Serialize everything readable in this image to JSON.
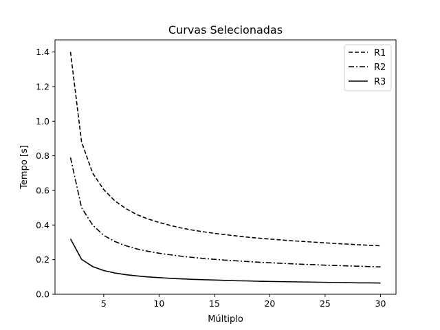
{
  "chart_data": {
    "type": "line",
    "title": "Curvas Selecionadas",
    "xlabel": "Múltiplo",
    "ylabel": "Tempo [s]",
    "xlim": [
      0.6,
      31.4
    ],
    "ylim": [
      0.0,
      1.47
    ],
    "xticks": [
      5,
      10,
      15,
      20,
      25,
      30
    ],
    "xtick_labels": [
      "5",
      "10",
      "15",
      "20",
      "25",
      "30"
    ],
    "yticks": [
      0.0,
      0.2,
      0.4,
      0.6,
      0.8,
      1.0,
      1.2,
      1.4
    ],
    "ytick_labels": [
      "0.0",
      "0.2",
      "0.4",
      "0.6",
      "0.8",
      "1.0",
      "1.2",
      "1.4"
    ],
    "grid": false,
    "legend_position": "top-right",
    "x": [
      2,
      3,
      4,
      5,
      6,
      7,
      8,
      9,
      10,
      11,
      12,
      13,
      14,
      15,
      16,
      17,
      18,
      19,
      20,
      21,
      22,
      23,
      24,
      25,
      26,
      27,
      28,
      29,
      30
    ],
    "series": [
      {
        "name": "R1",
        "line_style": "dashed",
        "color": "#000000",
        "values": [
          1.4,
          0.88,
          0.7,
          0.605,
          0.54,
          0.495,
          0.46,
          0.435,
          0.415,
          0.398,
          0.383,
          0.371,
          0.361,
          0.352,
          0.344,
          0.337,
          0.33,
          0.324,
          0.319,
          0.314,
          0.309,
          0.305,
          0.301,
          0.297,
          0.293,
          0.29,
          0.286,
          0.283,
          0.28
        ]
      },
      {
        "name": "R2",
        "line_style": "dashdot",
        "color": "#000000",
        "values": [
          0.79,
          0.5,
          0.4,
          0.34,
          0.305,
          0.28,
          0.262,
          0.248,
          0.237,
          0.228,
          0.22,
          0.213,
          0.207,
          0.202,
          0.197,
          0.193,
          0.189,
          0.185,
          0.182,
          0.179,
          0.176,
          0.173,
          0.171,
          0.168,
          0.166,
          0.164,
          0.162,
          0.16,
          0.158
        ]
      },
      {
        "name": "R3",
        "line_style": "solid",
        "color": "#000000",
        "values": [
          0.32,
          0.202,
          0.16,
          0.137,
          0.123,
          0.113,
          0.106,
          0.1,
          0.096,
          0.092,
          0.089,
          0.086,
          0.084,
          0.082,
          0.08,
          0.078,
          0.077,
          0.075,
          0.074,
          0.073,
          0.072,
          0.071,
          0.07,
          0.069,
          0.068,
          0.067,
          0.066,
          0.066,
          0.065
        ]
      }
    ]
  }
}
